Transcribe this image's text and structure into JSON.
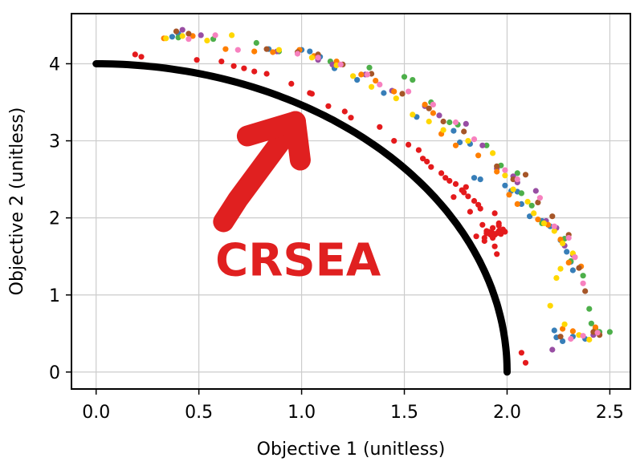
{
  "chart_data": {
    "type": "scatter",
    "xlabel": "Objective 1 (unitless)",
    "ylabel": "Objective 2 (unitless)",
    "xlim": [
      -0.12,
      2.6
    ],
    "ylim": [
      -0.22,
      4.65
    ],
    "xticks": [
      0.0,
      0.5,
      1.0,
      1.5,
      2.0,
      2.5
    ],
    "xtick_labels": [
      "0.0",
      "0.5",
      "1.0",
      "1.5",
      "2.0",
      "2.5"
    ],
    "yticks": [
      0,
      1,
      2,
      3,
      4
    ],
    "ytick_labels": [
      "0",
      "1",
      "2",
      "3",
      "4"
    ],
    "grid": true,
    "legend": "none",
    "annotation": {
      "text": "CRSEA",
      "color": "#e02020",
      "text_at": [
        0.58,
        1.25
      ],
      "arrow_from": [
        0.62,
        1.95
      ],
      "arrow_to": [
        0.97,
        3.25
      ]
    },
    "front": {
      "color": "#000000",
      "shape": "quarter-ellipse",
      "semi_axis_x": 2.0,
      "semi_axis_y": 4.0
    },
    "series": [
      {
        "color": "#e41a1c",
        "points": [
          [
            0.19,
            4.12
          ],
          [
            0.22,
            4.09
          ],
          [
            0.49,
            4.05
          ],
          [
            0.61,
            4.03
          ],
          [
            0.67,
            3.97
          ],
          [
            0.72,
            3.94
          ],
          [
            0.77,
            3.9
          ],
          [
            0.83,
            3.87
          ],
          [
            0.95,
            3.74
          ],
          [
            1.04,
            3.62
          ],
          [
            1.05,
            3.61
          ],
          [
            1.13,
            3.45
          ],
          [
            1.21,
            3.38
          ],
          [
            1.24,
            3.3
          ],
          [
            1.38,
            3.18
          ],
          [
            1.45,
            3.0
          ],
          [
            1.52,
            2.95
          ],
          [
            1.57,
            2.88
          ],
          [
            1.59,
            2.77
          ],
          [
            1.61,
            2.73
          ],
          [
            1.63,
            2.66
          ],
          [
            1.68,
            2.58
          ],
          [
            1.7,
            2.52
          ],
          [
            1.72,
            2.48
          ],
          [
            1.75,
            2.44
          ],
          [
            1.78,
            2.36
          ],
          [
            1.79,
            2.33
          ],
          [
            1.81,
            2.28
          ],
          [
            1.84,
            2.22
          ],
          [
            1.86,
            2.17
          ],
          [
            1.87,
            2.12
          ],
          [
            1.94,
            2.06
          ],
          [
            1.96,
            1.93
          ],
          [
            1.98,
            1.85
          ],
          [
            1.9,
            1.8
          ],
          [
            1.8,
            2.4
          ],
          [
            1.74,
            2.27
          ],
          [
            1.82,
            2.08
          ],
          [
            1.88,
            1.91
          ],
          [
            1.93,
            1.87
          ],
          [
            1.95,
            1.8
          ],
          [
            1.96,
            1.9
          ],
          [
            1.91,
            1.82
          ],
          [
            1.92,
            1.78
          ],
          [
            1.99,
            1.82
          ],
          [
            1.97,
            1.79
          ],
          [
            1.85,
            1.76
          ],
          [
            1.89,
            1.7
          ],
          [
            1.94,
            1.63
          ],
          [
            1.95,
            1.53
          ],
          [
            1.93,
            1.8
          ],
          [
            1.92,
            1.81
          ],
          [
            1.9,
            1.83
          ],
          [
            1.91,
            1.8
          ],
          [
            1.89,
            1.74
          ],
          [
            1.93,
            1.74
          ],
          [
            1.96,
            1.83
          ],
          [
            1.97,
            1.83
          ],
          [
            1.94,
            1.78
          ],
          [
            1.93,
            1.79
          ],
          [
            2.07,
            0.25
          ],
          [
            2.09,
            0.12
          ]
        ]
      },
      {
        "color": "#377eb8",
        "points": [
          [
            0.37,
            4.35
          ],
          [
            0.4,
            4.39
          ],
          [
            0.84,
            4.19
          ],
          [
            1.0,
            4.18
          ],
          [
            1.04,
            4.16
          ],
          [
            1.09,
            4.09
          ],
          [
            1.16,
            3.94
          ],
          [
            1.27,
            3.79
          ],
          [
            1.4,
            3.62
          ],
          [
            1.56,
            3.31
          ],
          [
            1.74,
            3.13
          ],
          [
            1.77,
            2.98
          ],
          [
            1.82,
            2.96
          ],
          [
            1.84,
            2.52
          ],
          [
            1.87,
            2.5
          ],
          [
            1.99,
            2.42
          ],
          [
            2.02,
            2.35
          ],
          [
            2.05,
            2.34
          ],
          [
            2.07,
            2.18
          ],
          [
            2.11,
            2.02
          ],
          [
            2.17,
            1.96
          ],
          [
            2.21,
            1.89
          ],
          [
            2.26,
            1.71
          ],
          [
            2.29,
            1.56
          ],
          [
            2.31,
            1.43
          ],
          [
            2.32,
            1.32
          ],
          [
            2.23,
            0.54
          ],
          [
            2.24,
            0.45
          ],
          [
            2.27,
            0.4
          ],
          [
            2.32,
            0.46
          ],
          [
            2.38,
            0.43
          ]
        ]
      },
      {
        "color": "#4daf4a",
        "points": [
          [
            0.4,
            4.34
          ],
          [
            0.57,
            4.32
          ],
          [
            0.78,
            4.27
          ],
          [
            0.89,
            4.16
          ],
          [
            1.14,
            4.03
          ],
          [
            1.33,
            3.95
          ],
          [
            1.5,
            3.83
          ],
          [
            1.54,
            3.79
          ],
          [
            1.63,
            3.5
          ],
          [
            1.72,
            3.24
          ],
          [
            1.76,
            3.21
          ],
          [
            1.9,
            2.94
          ],
          [
            1.97,
            2.68
          ],
          [
            2.05,
            2.58
          ],
          [
            2.07,
            2.32
          ],
          [
            2.12,
            2.16
          ],
          [
            2.17,
            1.93
          ],
          [
            2.28,
            1.73
          ],
          [
            2.31,
            1.44
          ],
          [
            2.37,
            1.25
          ],
          [
            2.4,
            0.82
          ],
          [
            2.41,
            0.63
          ],
          [
            2.43,
            0.56
          ],
          [
            2.45,
            0.52
          ],
          [
            2.5,
            0.52
          ]
        ]
      },
      {
        "color": "#984ea3",
        "points": [
          [
            0.42,
            4.44
          ],
          [
            0.51,
            4.37
          ],
          [
            0.88,
            4.16
          ],
          [
            1.08,
            4.05
          ],
          [
            1.15,
            3.99
          ],
          [
            1.31,
            3.86
          ],
          [
            1.44,
            3.65
          ],
          [
            1.6,
            3.45
          ],
          [
            1.67,
            3.33
          ],
          [
            1.8,
            3.22
          ],
          [
            1.88,
            2.94
          ],
          [
            1.95,
            2.64
          ],
          [
            2.03,
            2.54
          ],
          [
            2.05,
            2.46
          ],
          [
            2.14,
            2.35
          ],
          [
            2.19,
            1.96
          ],
          [
            2.24,
            1.87
          ],
          [
            2.28,
            1.64
          ],
          [
            2.32,
            1.52
          ],
          [
            2.22,
            0.29
          ],
          [
            2.42,
            0.48
          ]
        ]
      },
      {
        "color": "#ff7f00",
        "points": [
          [
            0.33,
            4.33
          ],
          [
            0.47,
            4.36
          ],
          [
            0.63,
            4.19
          ],
          [
            0.77,
            4.16
          ],
          [
            0.86,
            4.15
          ],
          [
            0.99,
            4.18
          ],
          [
            1.06,
            4.1
          ],
          [
            1.17,
            4.03
          ],
          [
            1.29,
            3.86
          ],
          [
            1.36,
            3.78
          ],
          [
            1.45,
            3.64
          ],
          [
            1.6,
            3.47
          ],
          [
            1.64,
            3.36
          ],
          [
            1.68,
            3.09
          ],
          [
            1.75,
            2.94
          ],
          [
            1.86,
            2.81
          ],
          [
            1.95,
            2.6
          ],
          [
            2.01,
            2.3
          ],
          [
            2.05,
            2.18
          ],
          [
            2.15,
            1.98
          ],
          [
            2.2,
            1.91
          ],
          [
            2.26,
            1.72
          ],
          [
            2.33,
            1.49
          ],
          [
            2.3,
            1.42
          ],
          [
            2.36,
            1.37
          ],
          [
            2.43,
            0.58
          ],
          [
            2.27,
            0.56
          ],
          [
            2.32,
            0.53
          ]
        ]
      },
      {
        "color": "#ffd700",
        "points": [
          [
            0.34,
            4.33
          ],
          [
            0.42,
            4.36
          ],
          [
            0.54,
            4.3
          ],
          [
            0.66,
            4.37
          ],
          [
            0.89,
            4.18
          ],
          [
            1.05,
            4.08
          ],
          [
            1.17,
            3.98
          ],
          [
            1.25,
            3.84
          ],
          [
            1.34,
            3.7
          ],
          [
            1.46,
            3.55
          ],
          [
            1.54,
            3.34
          ],
          [
            1.62,
            3.25
          ],
          [
            1.69,
            3.14
          ],
          [
            1.81,
            3.0
          ],
          [
            1.93,
            2.84
          ],
          [
            1.99,
            2.55
          ],
          [
            2.03,
            2.37
          ],
          [
            2.1,
            2.21
          ],
          [
            2.13,
            2.06
          ],
          [
            2.18,
            1.93
          ],
          [
            2.23,
            1.83
          ],
          [
            2.27,
            1.67
          ],
          [
            2.32,
            1.54
          ],
          [
            2.26,
            1.34
          ],
          [
            2.24,
            1.22
          ],
          [
            2.21,
            0.86
          ],
          [
            2.28,
            0.62
          ],
          [
            2.35,
            0.48
          ],
          [
            2.4,
            0.42
          ]
        ]
      },
      {
        "color": "#a65628",
        "points": [
          [
            0.39,
            4.42
          ],
          [
            0.45,
            4.39
          ],
          [
            0.83,
            4.19
          ],
          [
            0.98,
            4.15
          ],
          [
            1.08,
            4.12
          ],
          [
            1.2,
            3.99
          ],
          [
            1.34,
            3.87
          ],
          [
            1.49,
            3.61
          ],
          [
            1.62,
            3.42
          ],
          [
            1.69,
            3.25
          ],
          [
            1.79,
            3.12
          ],
          [
            1.95,
            2.67
          ],
          [
            2.03,
            2.5
          ],
          [
            2.09,
            2.56
          ],
          [
            2.15,
            2.2
          ],
          [
            2.22,
            2.02
          ],
          [
            2.3,
            1.78
          ],
          [
            2.35,
            1.35
          ],
          [
            2.38,
            1.05
          ],
          [
            2.42,
            0.52
          ],
          [
            2.45,
            0.48
          ],
          [
            2.26,
            0.46
          ]
        ]
      },
      {
        "color": "#f781bf",
        "points": [
          [
            0.45,
            4.32
          ],
          [
            0.58,
            4.37
          ],
          [
            0.69,
            4.18
          ],
          [
            0.98,
            4.13
          ],
          [
            1.08,
            4.08
          ],
          [
            1.19,
            3.99
          ],
          [
            1.32,
            3.86
          ],
          [
            1.38,
            3.73
          ],
          [
            1.52,
            3.64
          ],
          [
            1.64,
            3.47
          ],
          [
            1.75,
            3.24
          ],
          [
            1.84,
            3.02
          ],
          [
            1.99,
            2.62
          ],
          [
            2.05,
            2.5
          ],
          [
            2.16,
            2.26
          ],
          [
            2.23,
            1.89
          ],
          [
            2.3,
            1.74
          ],
          [
            2.33,
            1.49
          ],
          [
            2.37,
            1.15
          ],
          [
            2.44,
            0.51
          ],
          [
            2.37,
            0.47
          ],
          [
            2.31,
            0.43
          ]
        ]
      }
    ]
  }
}
